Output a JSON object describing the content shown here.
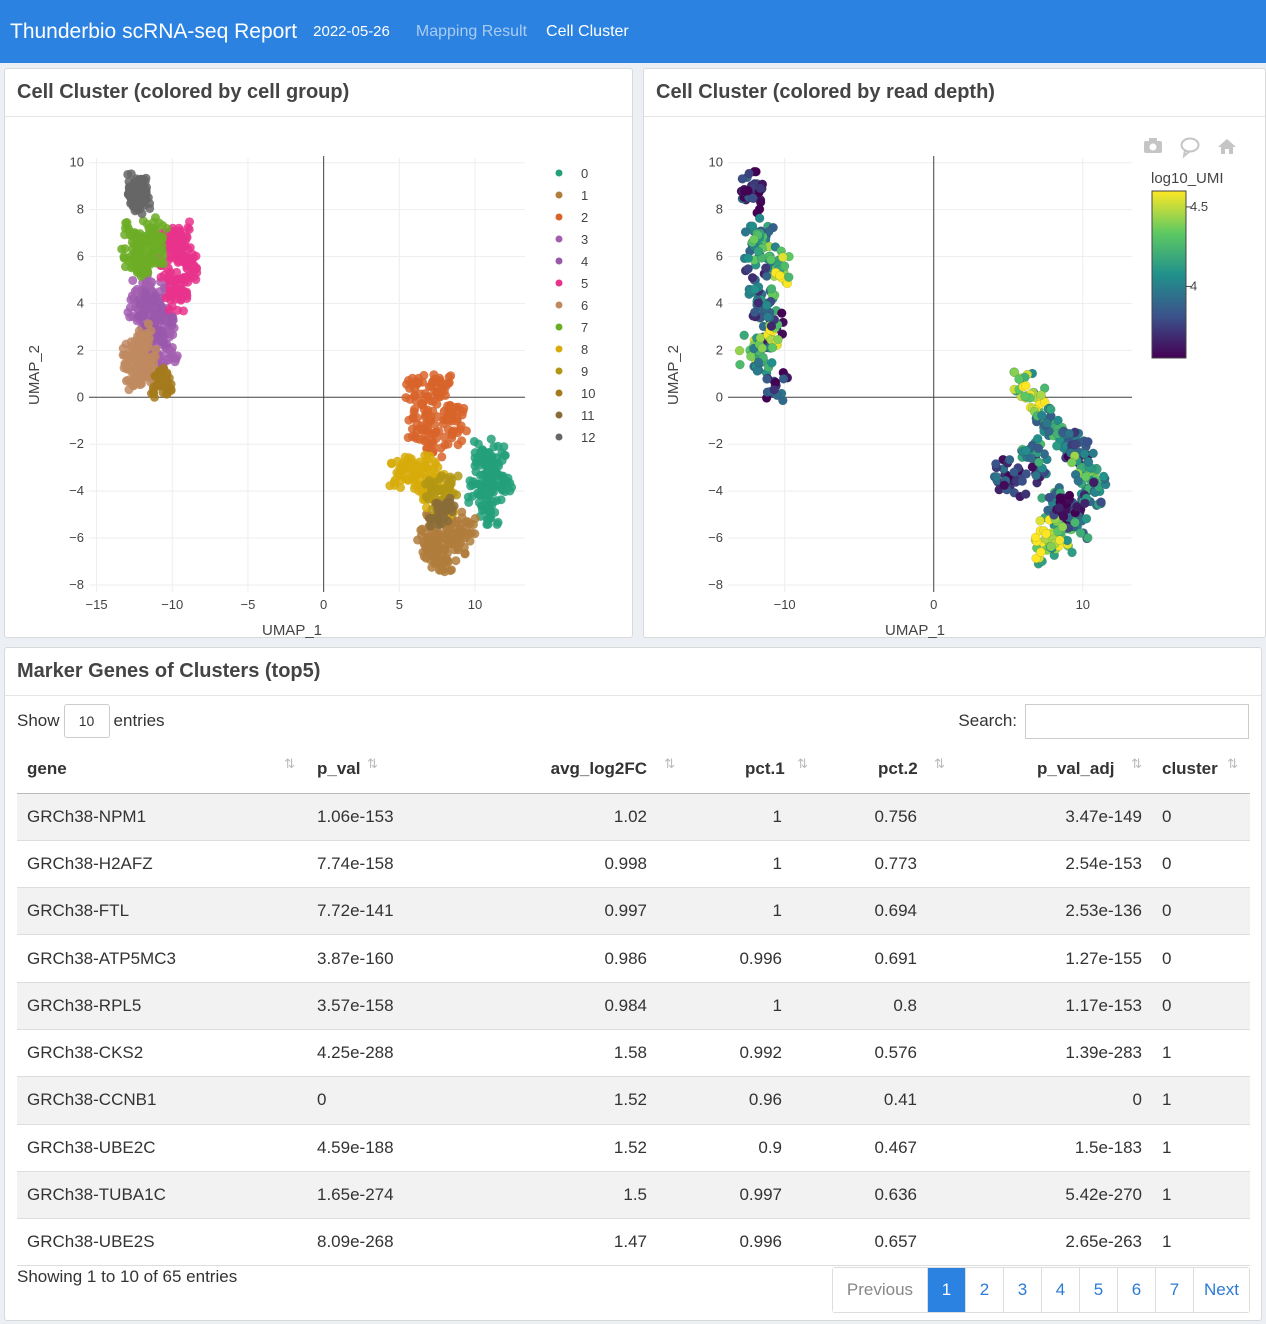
{
  "navbar": {
    "brand": "Thunderbio scRNA-seq Report",
    "date": "2022-05-26",
    "links": [
      "Mapping Result",
      "Cell Cluster"
    ],
    "active_link": "Cell Cluster",
    "color": "#2b82e0"
  },
  "panel_group": {
    "title": "Cell Cluster (colored by cell group)"
  },
  "panel_depth": {
    "title": "Cell Cluster (colored by read depth)",
    "toolbar_icons": [
      "camera-icon",
      "speech-bubble-icon",
      "home-icon"
    ]
  },
  "chart_data": [
    {
      "type": "scatter",
      "xlabel": "UMAP_1",
      "ylabel": "UMAP_2",
      "xlim": [
        -15.5,
        13.3
      ],
      "ylim": [
        -8.3,
        10.2
      ],
      "xticks": [
        -15,
        -10,
        -5,
        0,
        5,
        10
      ],
      "yticks": [
        -8,
        -6,
        -4,
        -2,
        0,
        2,
        4,
        6,
        8,
        10
      ],
      "grid": true,
      "legend_position": "right",
      "series": [
        {
          "name": "0",
          "color": "#23a07a",
          "x": [
            10.5,
            11.2,
            10.8,
            10.2,
            11.5,
            10.9,
            11.8,
            10.6,
            11.0,
            11.4
          ],
          "y": [
            -2.3,
            -3.0,
            -3.6,
            -4.1,
            -3.3,
            -4.6,
            -3.9,
            -2.8,
            -4.9,
            -2.6
          ]
        },
        {
          "name": "1",
          "color": "#b07c3c",
          "x": [
            7.0,
            7.5,
            8.0,
            8.5,
            9.0,
            7.3,
            8.8,
            9.4,
            6.8,
            8.2
          ],
          "y": [
            -5.5,
            -6.0,
            -6.5,
            -5.8,
            -6.2,
            -6.8,
            -5.3,
            -5.6,
            -6.4,
            -7.0
          ]
        },
        {
          "name": "2",
          "color": "#d8642a",
          "x": [
            6.0,
            6.5,
            7.0,
            7.5,
            8.0,
            8.5,
            6.2,
            7.2,
            7.8,
            8.8
          ],
          "y": [
            0.4,
            -0.3,
            -1.0,
            0.2,
            -0.6,
            -1.5,
            -1.4,
            -2.0,
            0.5,
            -0.9
          ]
        },
        {
          "name": "3",
          "color": "#a35eb0",
          "x": [
            -12.0,
            -11.5,
            -11.0,
            -10.5,
            -12.3,
            -11.2,
            -10.8,
            -11.7,
            -10.3,
            -11.4
          ],
          "y": [
            4.5,
            3.5,
            2.5,
            3.0,
            3.8,
            1.5,
            4.2,
            2.0,
            1.6,
            4.9
          ]
        },
        {
          "name": "4",
          "color": "#9a58ab",
          "x": [
            -11.3,
            -10.9,
            -11.6,
            -10.6
          ],
          "y": [
            3.2,
            2.8,
            4.0,
            3.6
          ]
        },
        {
          "name": "5",
          "color": "#e8338c",
          "x": [
            -10.0,
            -9.5,
            -9.2,
            -10.3,
            -9.7,
            -9.0,
            -10.1,
            -9.4,
            -9.8,
            -9.3
          ],
          "y": [
            6.5,
            7.0,
            6.0,
            5.5,
            5.0,
            5.5,
            6.8,
            4.6,
            4.2,
            6.4
          ]
        },
        {
          "name": "6",
          "color": "#bf8a60",
          "x": [
            -12.5,
            -12.0,
            -11.5,
            -12.3,
            -11.8,
            -12.1,
            -11.6,
            -12.6
          ],
          "y": [
            0.8,
            1.2,
            1.6,
            2.2,
            2.6,
            1.0,
            0.9,
            1.8
          ]
        },
        {
          "name": "7",
          "color": "#6cad26",
          "x": [
            -12.5,
            -12.0,
            -11.5,
            -11.0,
            -12.2,
            -11.7,
            -11.2,
            -12.7
          ],
          "y": [
            7.0,
            6.5,
            7.2,
            6.8,
            5.6,
            5.8,
            6.2,
            6.0
          ]
        },
        {
          "name": "8",
          "color": "#d7ac0a",
          "x": [
            5.5,
            6.0,
            6.5,
            7.0,
            7.5,
            8.0,
            5.0,
            6.8
          ],
          "y": [
            -3.0,
            -3.4,
            -3.8,
            -4.2,
            -3.5,
            -4.6,
            -3.3,
            -3.0
          ]
        },
        {
          "name": "9",
          "color": "#b39614",
          "x": [
            7.2,
            7.8,
            8.3
          ],
          "y": [
            -4.0,
            -4.4,
            -3.8
          ]
        },
        {
          "name": "10",
          "color": "#a57a1c",
          "x": [
            -10.6,
            -10.4,
            -10.8
          ],
          "y": [
            0.5,
            0.6,
            0.7
          ]
        },
        {
          "name": "11",
          "color": "#8a6c38",
          "x": [
            7.6,
            8.1
          ],
          "y": [
            -5.0,
            -4.8
          ]
        },
        {
          "name": "12",
          "color": "#666666",
          "x": [
            -12.3,
            -12.2,
            -12.25,
            -12.1,
            -12.3,
            -12.15
          ],
          "y": [
            9.1,
            8.9,
            8.7,
            8.5,
            8.6,
            8.3
          ]
        }
      ]
    },
    {
      "type": "scatter",
      "xlabel": "UMAP_1",
      "ylabel": "UMAP_2",
      "xlim": [
        -13.8,
        13.3
      ],
      "ylim": [
        -8.3,
        10.2
      ],
      "xticks": [
        -10,
        0,
        10
      ],
      "yticks": [
        -8,
        -6,
        -4,
        -2,
        0,
        2,
        4,
        6,
        8,
        10
      ],
      "grid": true,
      "colorscale": "viridis",
      "colorbar_title": "log10_UMI",
      "colorbar_ticks": [
        4,
        4.5
      ],
      "colorbar_range": [
        3.55,
        4.6
      ],
      "points": {
        "x": [
          -12.2,
          -12.1,
          -11.5,
          -11.0,
          -10.5,
          -12.0,
          -11.3,
          -10.8,
          -12.3,
          -11.6,
          -10.6,
          -10.9,
          -11.9,
          -11.4,
          6.0,
          6.8,
          7.5,
          8.2,
          9.0,
          9.8,
          10.5,
          7.0,
          8.0,
          9.2,
          10.8,
          7.6,
          8.6,
          9.6,
          6.5,
          4.8,
          5.5,
          7.9,
          8.8,
          9.9
        ],
        "y": [
          9.0,
          8.5,
          7.0,
          6.0,
          5.5,
          5.0,
          4.0,
          3.0,
          2.0,
          1.5,
          0.5,
          2.5,
          6.5,
          3.5,
          0.5,
          0.0,
          -1.0,
          -1.5,
          -2.0,
          -2.5,
          -3.5,
          -3.0,
          -4.5,
          -5.0,
          -4.0,
          -6.5,
          -6.0,
          -5.5,
          -2.2,
          -3.3,
          -3.6,
          -5.8,
          -4.8,
          -3.0
        ],
        "value": [
          3.7,
          3.65,
          4.0,
          4.2,
          4.4,
          3.9,
          4.1,
          3.8,
          4.3,
          4.0,
          3.7,
          4.5,
          4.1,
          3.9,
          4.3,
          4.45,
          4.0,
          4.1,
          3.9,
          3.7,
          4.2,
          3.8,
          4.0,
          3.6,
          3.9,
          4.4,
          4.3,
          4.0,
          4.1,
          3.7,
          3.8,
          4.5,
          3.6,
          4.2
        ]
      }
    }
  ],
  "markers": {
    "title": "Marker Genes of Clusters (top5)",
    "show_label": "Show",
    "length": "10",
    "entries_label": "entries",
    "search_label": "Search:",
    "search_value": "",
    "columns": [
      "gene",
      "p_val",
      "avg_log2FC",
      "pct.1",
      "pct.2",
      "p_val_adj",
      "cluster"
    ],
    "rows": [
      [
        "GRCh38-NPM1",
        "1.06e-153",
        "1.02",
        "1",
        "0.756",
        "3.47e-149",
        "0"
      ],
      [
        "GRCh38-H2AFZ",
        "7.74e-158",
        "0.998",
        "1",
        "0.773",
        "2.54e-153",
        "0"
      ],
      [
        "GRCh38-FTL",
        "7.72e-141",
        "0.997",
        "1",
        "0.694",
        "2.53e-136",
        "0"
      ],
      [
        "GRCh38-ATP5MC3",
        "3.87e-160",
        "0.986",
        "0.996",
        "0.691",
        "1.27e-155",
        "0"
      ],
      [
        "GRCh38-RPL5",
        "3.57e-158",
        "0.984",
        "1",
        "0.8",
        "1.17e-153",
        "0"
      ],
      [
        "GRCh38-CKS2",
        "4.25e-288",
        "1.58",
        "0.992",
        "0.576",
        "1.39e-283",
        "1"
      ],
      [
        "GRCh38-CCNB1",
        "0",
        "1.52",
        "0.96",
        "0.41",
        "0",
        "1"
      ],
      [
        "GRCh38-UBE2C",
        "4.59e-188",
        "1.52",
        "0.9",
        "0.467",
        "1.5e-183",
        "1"
      ],
      [
        "GRCh38-TUBA1C",
        "1.65e-274",
        "1.5",
        "0.997",
        "0.636",
        "5.42e-270",
        "1"
      ],
      [
        "GRCh38-UBE2S",
        "8.09e-268",
        "1.47",
        "0.996",
        "0.657",
        "2.65e-263",
        "1"
      ]
    ],
    "info": "Showing 1 to 10 of 65 entries",
    "pagination": {
      "previous": "Previous",
      "pages": [
        "1",
        "2",
        "3",
        "4",
        "5",
        "6",
        "7"
      ],
      "active": "1",
      "next": "Next"
    }
  }
}
